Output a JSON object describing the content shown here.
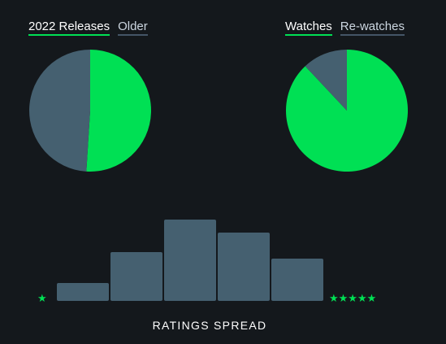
{
  "pie_left": {
    "legend": [
      "2022 Releases",
      "Older"
    ],
    "active_index": 0
  },
  "pie_right": {
    "legend": [
      "Watches",
      "Re-watches"
    ],
    "active_index": 0
  },
  "histogram": {
    "low_label": "★",
    "high_label": "★★★★★",
    "caption": "RATINGS SPREAD"
  },
  "colors": {
    "accent": "#00e054",
    "muted": "#456070",
    "background": "#14181c"
  },
  "chart_data": [
    {
      "type": "pie",
      "labels": [
        "2022 Releases",
        "Older"
      ],
      "values": [
        51,
        49
      ]
    },
    {
      "type": "pie",
      "labels": [
        "Watches",
        "Re-watches"
      ],
      "values": [
        88,
        12
      ]
    },
    {
      "type": "bar",
      "categories": [
        "",
        "",
        "",
        "",
        ""
      ],
      "values": [
        22,
        60,
        100,
        84,
        52
      ],
      "title": "RATINGS SPREAD",
      "ylim": [
        0,
        100
      ]
    }
  ]
}
